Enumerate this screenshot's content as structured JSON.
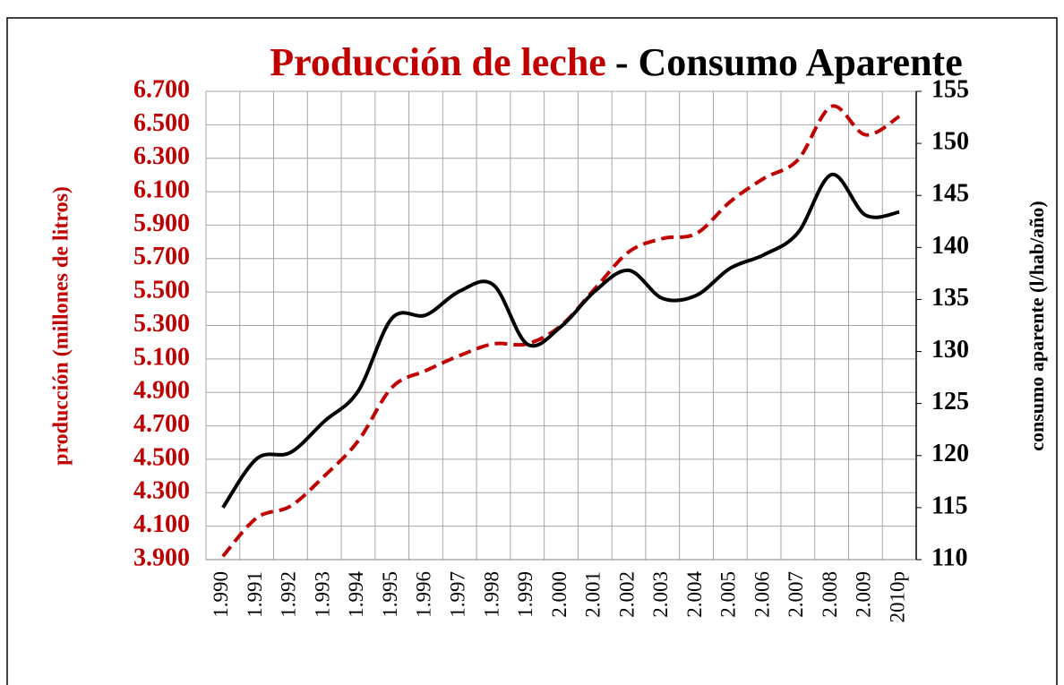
{
  "chart_data": {
    "type": "line",
    "title_parts": [
      {
        "text": "Producción de leche",
        "color": "#c00000"
      },
      {
        "text": "- Consumo Aparente",
        "color": "#000000"
      }
    ],
    "y_label": "producción (millones de litros)",
    "y2_label": "consumo aparente (l/hab/año)",
    "categories": [
      "1.990",
      "1.991",
      "1.992",
      "1.993",
      "1.994",
      "1.995",
      "1.996",
      "1.997",
      "1.998",
      "1.999",
      "2.000",
      "2.001",
      "2.002",
      "2.003",
      "2.004",
      "2.005",
      "2.006",
      "2.007",
      "2.008",
      "2.009",
      "2010p"
    ],
    "series": [
      {
        "name": "Producción de leche",
        "color": "#c00000",
        "dashed": true,
        "axis": "y",
        "values": [
          3920,
          4150,
          4220,
          4400,
          4610,
          4930,
          5030,
          5120,
          5190,
          5190,
          5300,
          5520,
          5740,
          5820,
          5850,
          6040,
          6180,
          6290,
          6610,
          6440,
          6550
        ]
      },
      {
        "name": "Consumo Aparente",
        "color": "#000000",
        "dashed": false,
        "axis": "y2",
        "values": [
          115,
          119.7,
          120.3,
          123.3,
          126.2,
          133.2,
          133.5,
          135.8,
          136.4,
          130.7,
          132.4,
          135.8,
          137.8,
          135.1,
          135.4,
          138,
          139.3,
          141.4,
          147,
          143.1,
          143.4
        ]
      }
    ],
    "ylim": [
      3900,
      6700
    ],
    "yticks": [
      {
        "value": 3900,
        "label": "3.900"
      },
      {
        "value": 4100,
        "label": "4.100"
      },
      {
        "value": 4300,
        "label": "4.300"
      },
      {
        "value": 4500,
        "label": "4.500"
      },
      {
        "value": 4700,
        "label": "4.700"
      },
      {
        "value": 4900,
        "label": "4.900"
      },
      {
        "value": 5100,
        "label": "5.100"
      },
      {
        "value": 5300,
        "label": "5.300"
      },
      {
        "value": 5500,
        "label": "5.500"
      },
      {
        "value": 5700,
        "label": "5.700"
      },
      {
        "value": 5900,
        "label": "5.900"
      },
      {
        "value": 6100,
        "label": "6.100"
      },
      {
        "value": 6300,
        "label": "6.300"
      },
      {
        "value": 6500,
        "label": "6.500"
      },
      {
        "value": 6700,
        "label": "6.700"
      }
    ],
    "y2lim": [
      110,
      155
    ],
    "y2ticks": [
      110,
      115,
      120,
      125,
      130,
      135,
      140,
      145,
      150,
      155
    ],
    "ytick_color": "#c00000",
    "y2tick_color": "#000000",
    "grid": true
  }
}
